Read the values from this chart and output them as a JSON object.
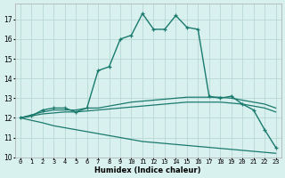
{
  "xlabel": "Humidex (Indice chaleur)",
  "xlim": [
    -0.5,
    23.5
  ],
  "ylim": [
    10,
    17.8
  ],
  "yticks": [
    10,
    11,
    12,
    13,
    14,
    15,
    16,
    17
  ],
  "xticks": [
    0,
    1,
    2,
    3,
    4,
    5,
    6,
    7,
    8,
    9,
    10,
    11,
    12,
    13,
    14,
    15,
    16,
    17,
    18,
    19,
    20,
    21,
    22,
    23
  ],
  "bg_color": "#d8f0ee",
  "grid_color": "#b8d8d4",
  "line_color": "#1a7a6e",
  "curves": [
    {
      "x": [
        0,
        1,
        2,
        3,
        4,
        5,
        6,
        7,
        8,
        9,
        10,
        11,
        12,
        13,
        14,
        15,
        16,
        17,
        18,
        19,
        20,
        21,
        22,
        23
      ],
      "y": [
        12.0,
        12.1,
        12.4,
        12.5,
        12.5,
        12.3,
        12.5,
        14.4,
        14.6,
        16.0,
        16.2,
        17.3,
        16.5,
        16.5,
        17.2,
        16.6,
        16.5,
        13.1,
        13.0,
        13.1,
        12.7,
        12.4,
        11.4,
        10.5
      ],
      "marker": "+",
      "lw": 1.0
    },
    {
      "x": [
        0,
        2,
        3,
        4,
        5,
        6,
        7,
        8,
        9,
        10,
        11,
        12,
        13,
        14,
        15,
        16,
        17,
        18,
        19,
        20,
        21,
        22,
        23
      ],
      "y": [
        12.0,
        12.3,
        12.4,
        12.4,
        12.4,
        12.5,
        12.5,
        12.6,
        12.7,
        12.8,
        12.85,
        12.9,
        12.95,
        13.0,
        13.05,
        13.05,
        13.05,
        13.05,
        13.0,
        12.9,
        12.8,
        12.7,
        12.5
      ],
      "marker": null,
      "lw": 0.9
    },
    {
      "x": [
        0,
        2,
        3,
        4,
        5,
        6,
        7,
        8,
        9,
        10,
        11,
        12,
        13,
        14,
        15,
        16,
        17,
        18,
        19,
        20,
        21,
        22,
        23
      ],
      "y": [
        12.0,
        12.2,
        12.25,
        12.3,
        12.3,
        12.35,
        12.4,
        12.45,
        12.5,
        12.55,
        12.6,
        12.65,
        12.7,
        12.75,
        12.8,
        12.8,
        12.8,
        12.8,
        12.75,
        12.7,
        12.6,
        12.5,
        12.3
      ],
      "marker": null,
      "lw": 0.9
    },
    {
      "x": [
        0,
        2,
        3,
        4,
        5,
        6,
        7,
        8,
        9,
        10,
        11,
        12,
        13,
        14,
        15,
        16,
        17,
        18,
        19,
        20,
        21,
        22,
        23
      ],
      "y": [
        12.0,
        11.75,
        11.6,
        11.5,
        11.4,
        11.3,
        11.2,
        11.1,
        11.0,
        10.9,
        10.8,
        10.75,
        10.7,
        10.65,
        10.6,
        10.55,
        10.5,
        10.45,
        10.4,
        10.35,
        10.3,
        10.25,
        10.2
      ],
      "marker": null,
      "lw": 0.9
    }
  ]
}
